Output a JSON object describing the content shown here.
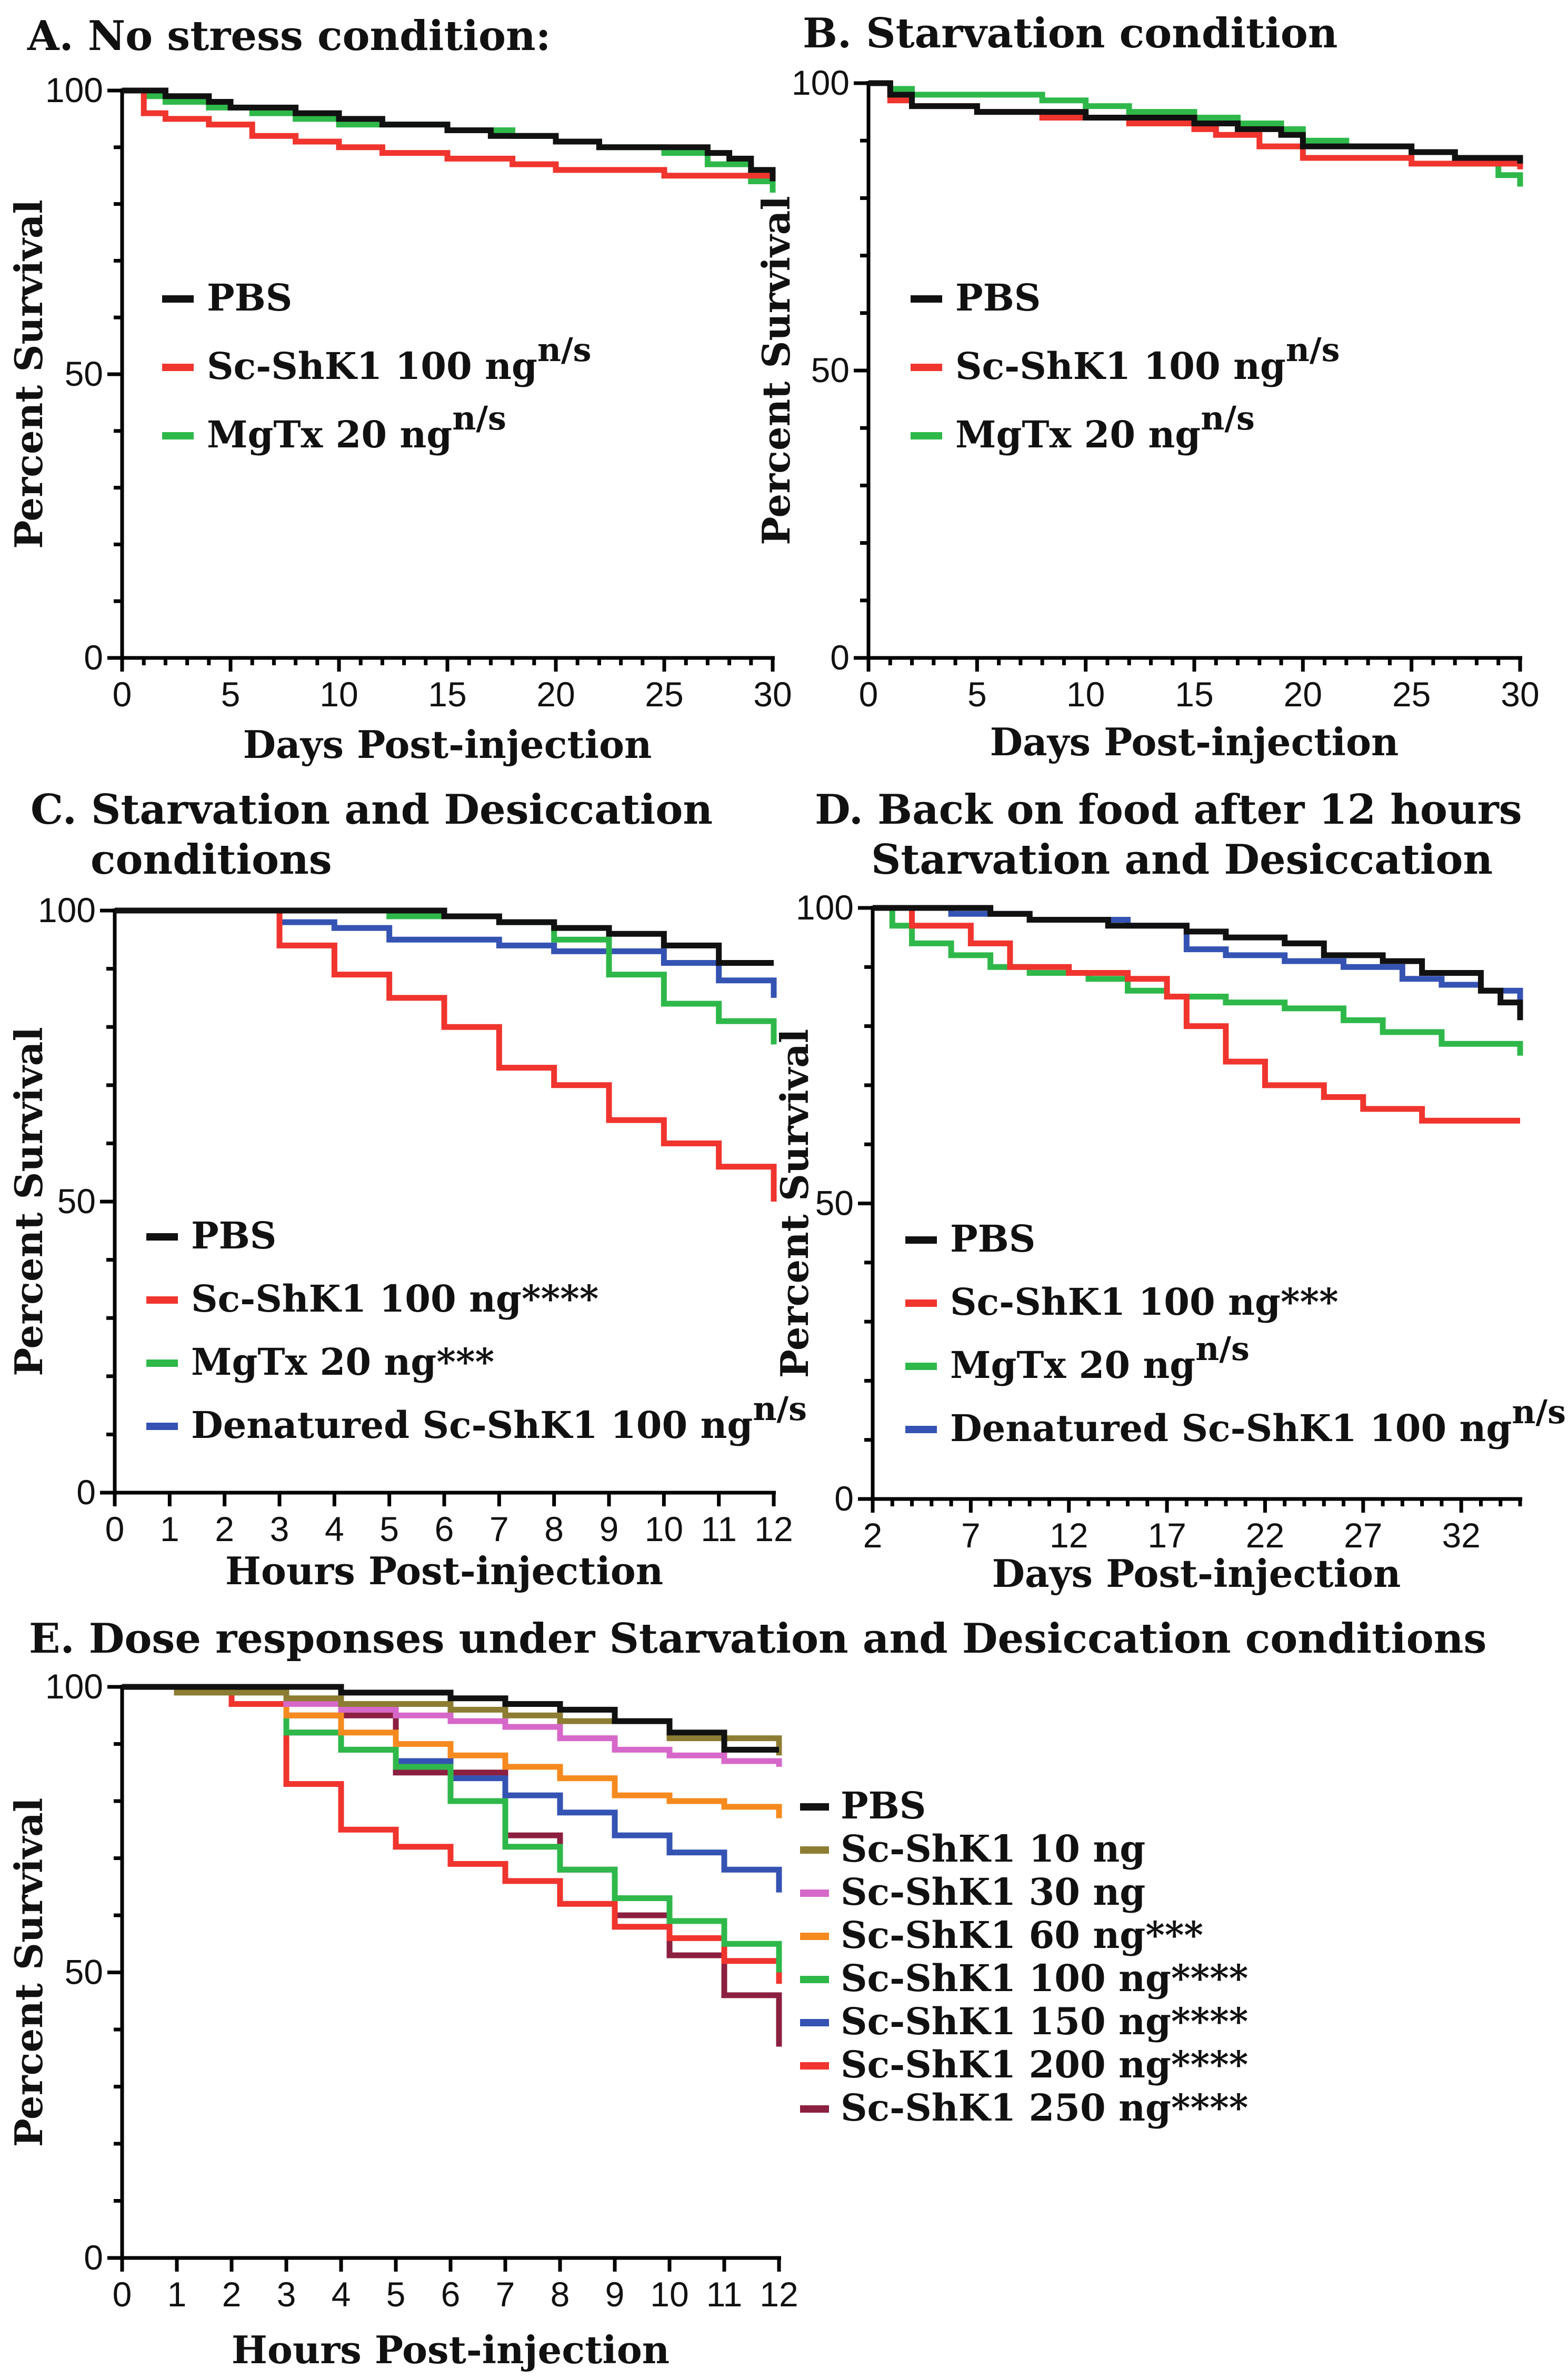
{
  "colors": {
    "black": "#111111",
    "red": "#f0342e",
    "green": "#2fb84a",
    "blue": "#3553b3",
    "olive": "#8c7d33",
    "pink": "#d668c9",
    "orange": "#f58a1f",
    "maroon": "#8c2040"
  },
  "chart_data": [
    {
      "id": "A",
      "type": "line",
      "title": "A.  No stress condition:",
      "xlabel": "Days Post-injection",
      "ylabel": "Percent Survival",
      "xlim": [
        0,
        30
      ],
      "ylim": [
        0,
        100
      ],
      "xticks": [
        "0",
        "5",
        "10",
        "15",
        "20",
        "25",
        "30"
      ],
      "yticks": [
        "0",
        "50",
        "100"
      ],
      "series": [
        {
          "name": "PBS",
          "sup": "",
          "color": "black",
          "x": [
            0,
            1,
            2,
            4,
            5,
            8,
            10,
            12,
            15,
            17,
            20,
            22,
            25,
            27,
            28,
            29,
            30
          ],
          "y": [
            100,
            100,
            99,
            98,
            97,
            96,
            95,
            94,
            93,
            92,
            91,
            90,
            90,
            89,
            88,
            86,
            84
          ]
        },
        {
          "name": "Sc-ShK1 100 ng",
          "sup": "n/s",
          "color": "red",
          "x": [
            0,
            1,
            2,
            4,
            6,
            8,
            10,
            12,
            15,
            18,
            20,
            22,
            25,
            27,
            30
          ],
          "y": [
            100,
            96,
            95,
            94,
            92,
            91,
            90,
            89,
            88,
            87,
            86,
            86,
            85,
            85,
            84
          ]
        },
        {
          "name": "MgTx 20 ng",
          "sup": "n/s",
          "color": "green",
          "x": [
            0,
            1,
            2,
            4,
            6,
            8,
            10,
            12,
            15,
            18,
            20,
            22,
            25,
            27,
            29,
            30
          ],
          "y": [
            100,
            99,
            98,
            97,
            96,
            95,
            94,
            94,
            93,
            92,
            91,
            90,
            89,
            87,
            84,
            82
          ]
        }
      ]
    },
    {
      "id": "B",
      "type": "line",
      "title": "B. Starvation condition",
      "xlabel": "Days Post-injection",
      "ylabel": "Percent Survival",
      "xlim": [
        0,
        30
      ],
      "ylim": [
        0,
        100
      ],
      "xticks": [
        "0",
        "5",
        "10",
        "15",
        "20",
        "25",
        "30"
      ],
      "yticks": [
        "0",
        "50",
        "100"
      ],
      "series": [
        {
          "name": "PBS",
          "sup": "",
          "color": "black",
          "x": [
            0,
            1,
            2,
            5,
            8,
            10,
            12,
            15,
            17,
            19,
            20,
            22,
            25,
            27,
            30
          ],
          "y": [
            100,
            98,
            96,
            95,
            95,
            94,
            94,
            93,
            92,
            91,
            89,
            89,
            88,
            87,
            86
          ]
        },
        {
          "name": "Sc-ShK1 100 ng",
          "sup": "n/s",
          "color": "red",
          "x": [
            0,
            1,
            2,
            5,
            8,
            10,
            12,
            15,
            16,
            18,
            20,
            22,
            25,
            27,
            30
          ],
          "y": [
            100,
            97,
            96,
            95,
            94,
            94,
            93,
            92,
            91,
            89,
            87,
            87,
            86,
            86,
            85
          ]
        },
        {
          "name": "MgTx 20 ng",
          "sup": "n/s",
          "color": "green",
          "x": [
            0,
            1,
            2,
            5,
            8,
            10,
            12,
            15,
            17,
            19,
            20,
            22,
            25,
            27,
            29,
            30
          ],
          "y": [
            100,
            99,
            98,
            98,
            97,
            96,
            95,
            94,
            93,
            92,
            90,
            89,
            88,
            86,
            84,
            82
          ]
        }
      ]
    },
    {
      "id": "C",
      "type": "line",
      "title": "C. Starvation and Desiccation",
      "title2": "conditions",
      "xlabel": "Hours Post-injection",
      "ylabel": "Percent Survival",
      "xlim": [
        0,
        12
      ],
      "ylim": [
        0,
        100
      ],
      "xticks": [
        "0",
        "1",
        "2",
        "3",
        "4",
        "5",
        "6",
        "7",
        "8",
        "9",
        "10",
        "11",
        "12"
      ],
      "yticks": [
        "0",
        "50",
        "100"
      ],
      "series": [
        {
          "name": "PBS",
          "sup": "",
          "color": "black",
          "x": [
            0,
            6,
            7,
            8,
            9,
            10,
            11,
            12
          ],
          "y": [
            100,
            99,
            98,
            97,
            96,
            94,
            91,
            91
          ]
        },
        {
          "name": "Sc-ShK1 100 ng****",
          "sup": "",
          "color": "red",
          "x": [
            0,
            3,
            4,
            5,
            6,
            7,
            8,
            9,
            10,
            11,
            12
          ],
          "y": [
            100,
            94,
            89,
            85,
            80,
            73,
            70,
            64,
            60,
            56,
            50
          ]
        },
        {
          "name": "MgTx 20 ng***",
          "sup": "",
          "color": "green",
          "x": [
            0,
            3,
            5,
            7,
            8,
            9,
            10,
            11,
            12
          ],
          "y": [
            100,
            100,
            99,
            98,
            95,
            89,
            84,
            81,
            77
          ]
        },
        {
          "name": "Denatured Sc-ShK1 100 ng",
          "sup": "n/s",
          "color": "blue",
          "x": [
            0,
            3,
            4,
            5,
            7,
            8,
            10,
            11,
            12
          ],
          "y": [
            100,
            98,
            97,
            95,
            94,
            93,
            91,
            88,
            85
          ]
        }
      ]
    },
    {
      "id": "D",
      "type": "line",
      "title": "D. Back on food after 12 hours",
      "title2": "Starvation and Desiccation",
      "xlabel": "Days Post-injection",
      "ylabel": "Percent Survival",
      "xlim": [
        2,
        35
      ],
      "ylim": [
        0,
        100
      ],
      "xticks": [
        "2",
        "7",
        "12",
        "17",
        "22",
        "27",
        "32"
      ],
      "yticks": [
        "0",
        "50",
        "100"
      ],
      "series": [
        {
          "name": "PBS",
          "sup": "",
          "color": "black",
          "x": [
            2,
            8,
            10,
            14,
            18,
            20,
            23,
            25,
            28,
            30,
            33,
            34,
            35
          ],
          "y": [
            100,
            99,
            98,
            97,
            96,
            95,
            94,
            92,
            91,
            89,
            86,
            84,
            81
          ]
        },
        {
          "name": "Sc-ShK1 100 ng***",
          "sup": "",
          "color": "red",
          "x": [
            2,
            4,
            7,
            9,
            12,
            15,
            17,
            18,
            20,
            22,
            25,
            27,
            30,
            35
          ],
          "y": [
            100,
            97,
            94,
            90,
            89,
            88,
            85,
            80,
            74,
            70,
            68,
            66,
            64,
            64
          ]
        },
        {
          "name": "MgTx 20 ng",
          "sup": "n/s",
          "color": "green",
          "x": [
            2,
            3,
            4,
            6,
            8,
            10,
            13,
            15,
            17,
            20,
            23,
            26,
            28,
            31,
            35
          ],
          "y": [
            100,
            97,
            94,
            92,
            90,
            89,
            88,
            86,
            85,
            84,
            83,
            81,
            79,
            77,
            75
          ]
        },
        {
          "name": "Denatured Sc-ShK1 100 ng",
          "sup": "n/s",
          "color": "blue",
          "x": [
            2,
            6,
            10,
            15,
            18,
            20,
            23,
            26,
            29,
            31,
            33,
            35
          ],
          "y": [
            100,
            99,
            98,
            97,
            93,
            92,
            91,
            90,
            88,
            87,
            86,
            84
          ]
        }
      ]
    },
    {
      "id": "E",
      "type": "line",
      "title": "E. Dose responses under Starvation and Desiccation conditions",
      "xlabel": "Hours Post-injection",
      "ylabel": "Percent Survival",
      "xlim": [
        0,
        12
      ],
      "ylim": [
        0,
        100
      ],
      "xticks": [
        "0",
        "1",
        "2",
        "3",
        "4",
        "5",
        "6",
        "7",
        "8",
        "9",
        "10",
        "11",
        "12"
      ],
      "yticks": [
        "0",
        "50",
        "100"
      ],
      "series": [
        {
          "name": "PBS",
          "sup": "",
          "color": "black",
          "x": [
            0,
            4,
            6,
            7,
            8,
            9,
            10,
            11,
            12
          ],
          "y": [
            100,
            99,
            98,
            97,
            96,
            94,
            92,
            89,
            89
          ]
        },
        {
          "name": "Sc-ShK1 10 ng",
          "sup": "",
          "color": "olive",
          "x": [
            0,
            1,
            3,
            4,
            6,
            7,
            8,
            10,
            12
          ],
          "y": [
            100,
            99,
            98,
            97,
            96,
            95,
            94,
            91,
            88
          ]
        },
        {
          "name": "Sc-ShK1 30 ng",
          "sup": "",
          "color": "pink",
          "x": [
            0,
            3,
            4,
            5,
            6,
            7,
            8,
            9,
            10,
            11,
            12
          ],
          "y": [
            100,
            97,
            96,
            95,
            94,
            93,
            91,
            89,
            88,
            87,
            86
          ]
        },
        {
          "name": "Sc-ShK1 60 ng***",
          "sup": "",
          "color": "orange",
          "x": [
            0,
            3,
            4,
            5,
            6,
            7,
            8,
            9,
            10,
            11,
            12
          ],
          "y": [
            100,
            95,
            92,
            90,
            88,
            86,
            84,
            81,
            80,
            79,
            77
          ]
        },
        {
          "name": "Sc-ShK1 100 ng****",
          "sup": "",
          "color": "green",
          "x": [
            0,
            3,
            4,
            5,
            6,
            7,
            8,
            9,
            10,
            11,
            12
          ],
          "y": [
            100,
            92,
            89,
            86,
            80,
            72,
            68,
            63,
            59,
            55,
            50
          ]
        },
        {
          "name": "Sc-ShK1 150 ng****",
          "sup": "",
          "color": "blue",
          "x": [
            0,
            3,
            4,
            5,
            6,
            7,
            8,
            9,
            10,
            11,
            12
          ],
          "y": [
            100,
            92,
            89,
            87,
            84,
            81,
            78,
            74,
            71,
            68,
            64
          ]
        },
        {
          "name": "Sc-ShK1 200 ng****",
          "sup": "",
          "color": "red",
          "x": [
            0,
            2,
            3,
            4,
            5,
            6,
            7,
            8,
            9,
            10,
            11,
            12
          ],
          "y": [
            100,
            97,
            83,
            75,
            72,
            69,
            66,
            62,
            58,
            56,
            52,
            48
          ]
        },
        {
          "name": "Sc-ShK1 250 ng****",
          "sup": "",
          "color": "maroon",
          "x": [
            0,
            3,
            5,
            7,
            8,
            9,
            10,
            11,
            12
          ],
          "y": [
            100,
            95,
            85,
            74,
            68,
            60,
            53,
            46,
            37
          ]
        }
      ]
    }
  ]
}
